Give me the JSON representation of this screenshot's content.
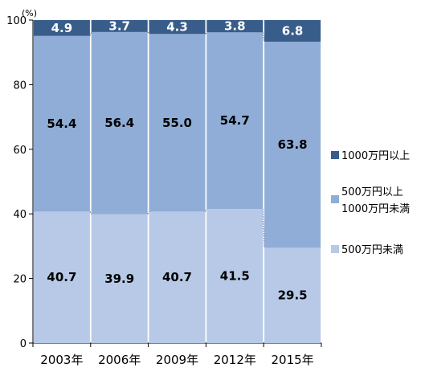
{
  "chart_data": {
    "type": "bar",
    "stacked": true,
    "percent": true,
    "y_unit": "(%)",
    "categories": [
      "2003年",
      "2006年",
      "2009年",
      "2012年",
      "2015年"
    ],
    "series": [
      {
        "name": "500万円未満",
        "values": [
          40.7,
          39.9,
          40.7,
          41.5,
          29.5
        ],
        "color": "#b7c9e6",
        "label_color": "#000000"
      },
      {
        "name": "500万円以上\n1000万円未満",
        "values": [
          54.4,
          56.4,
          55.0,
          54.7,
          63.8
        ],
        "color": "#8fadd6",
        "label_color": "#000000"
      },
      {
        "name": "1000万円以上",
        "values": [
          4.9,
          3.7,
          4.3,
          3.8,
          6.8
        ],
        "color": "#385d8a",
        "label_color": "#ffffff"
      }
    ],
    "value_labels": [
      [
        "40.7",
        "39.9",
        "40.7",
        "41.5",
        "29.5"
      ],
      [
        "54.4",
        "56.4",
        "55.0",
        "54.7",
        "63.8"
      ],
      [
        "4.9",
        "3.7",
        "4.3",
        "3.8",
        "6.8"
      ]
    ],
    "y_ticks": [
      "0",
      "20",
      "40",
      "60",
      "80",
      "100"
    ],
    "ylim": [
      0,
      100
    ],
    "legend_position": "right",
    "legend_order": [
      2,
      1,
      0
    ],
    "connector_lines": "dotted",
    "grid": false
  }
}
